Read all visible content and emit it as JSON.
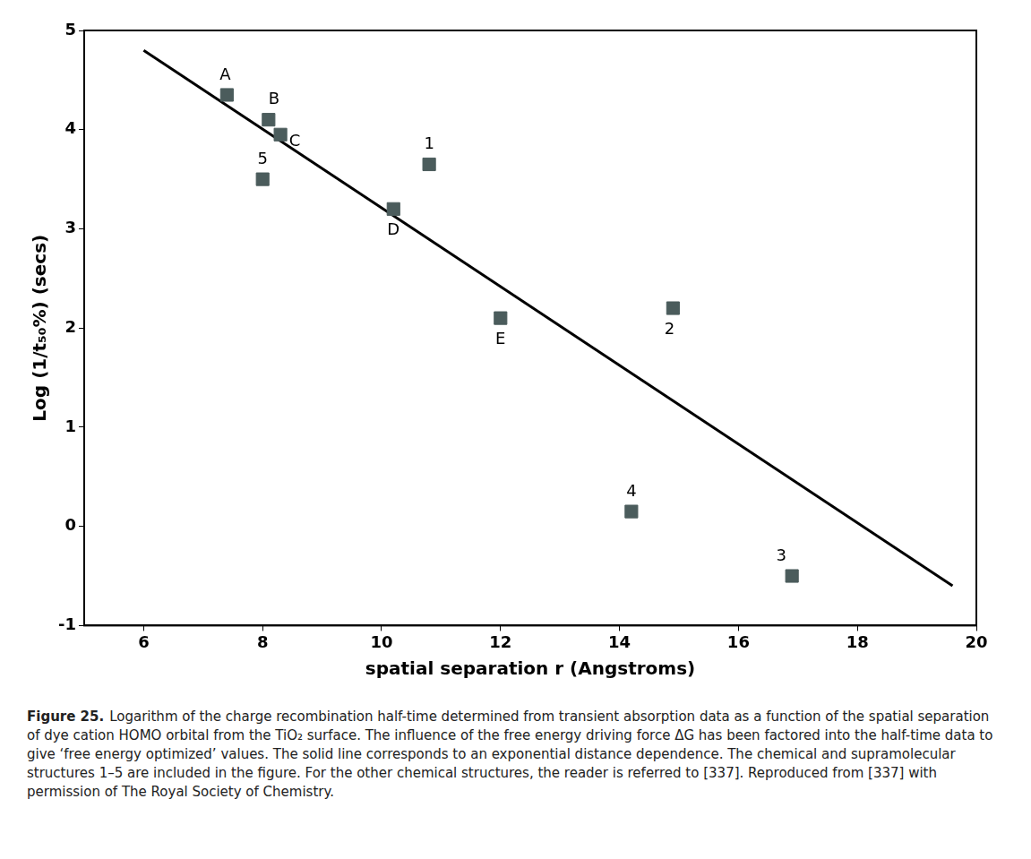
{
  "chart_data": {
    "type": "scatter",
    "x_label": "spatial separation r (Angstroms)",
    "y_label": "Log (1/t₅₀%) (secs)",
    "xlim": [
      5,
      20
    ],
    "xticks": [
      6,
      8,
      10,
      12,
      14,
      16,
      18,
      20
    ],
    "ylim": [
      -1,
      5
    ],
    "yticks": [
      -1,
      0,
      1,
      2,
      3,
      4,
      5
    ],
    "grid": false,
    "series": [
      {
        "type": "scatter",
        "marker": "square",
        "color": "#4b5c5c",
        "labels": [
          "A",
          "B",
          "C",
          "5",
          "1",
          "D",
          "E",
          "2",
          "4",
          "3"
        ],
        "x": [
          7.4,
          8.1,
          8.3,
          8.0,
          10.8,
          10.2,
          12.0,
          14.9,
          14.2,
          16.9
        ],
        "values": [
          4.35,
          4.1,
          3.95,
          3.5,
          3.65,
          3.2,
          2.1,
          2.2,
          0.15,
          -0.5
        ]
      },
      {
        "type": "line",
        "line_style": "solid",
        "color": "#000000",
        "x": [
          6,
          19.6
        ],
        "values": [
          4.8,
          -0.6
        ]
      }
    ]
  },
  "caption": {
    "label": "Figure 25.",
    "text": "Logarithm of the charge recombination half-time determined from transient absorption data as a function of the spatial separation of dye cation HOMO orbital from the TiO₂ surface. The influence of the free energy driving force ΔG has been factored into the half-time data to give ‘free energy optimized’ values. The solid line corresponds to an exponential distance dependence. The chemical and supramolecular structures 1–5 are included in the figure. For the other chemical structures, the reader is referred to [337]. Reproduced from [337] with permission of The Royal Society of Chemistry."
  }
}
